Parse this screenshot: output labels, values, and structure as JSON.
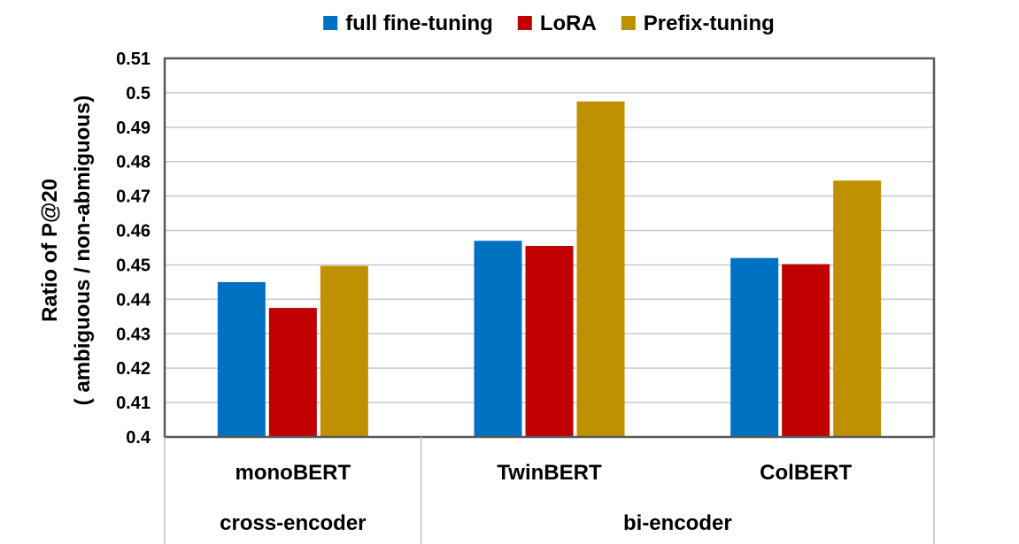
{
  "chart_data": {
    "type": "bar",
    "title": "",
    "xlabel": "",
    "ylabel_line1": "Ratio of P@20",
    "ylabel_line2": "( ambiguous  / non-abmiguous)",
    "ylim": [
      0.4,
      0.51
    ],
    "ytick_step": 0.01,
    "yticks": [
      "0.4",
      "0.41",
      "0.42",
      "0.43",
      "0.44",
      "0.45",
      "0.46",
      "0.47",
      "0.48",
      "0.49",
      "0.5",
      "0.51"
    ],
    "grid": true,
    "legend_position": "top-center",
    "categories": [
      "monoBERT",
      "TwinBERT",
      "ColBERT"
    ],
    "groups": [
      {
        "label": "cross-encoder",
        "members": [
          "monoBERT"
        ]
      },
      {
        "label": "bi-encoder",
        "members": [
          "TwinBERT",
          "ColBERT"
        ]
      }
    ],
    "series": [
      {
        "name": "full fine-tuning",
        "color": "#0070C0",
        "values": [
          0.445,
          0.457,
          0.452
        ]
      },
      {
        "name": "LoRA",
        "color": "#C00000",
        "values": [
          0.4375,
          0.4555,
          0.4502
        ]
      },
      {
        "name": "Prefix-tuning",
        "color": "#BF9000",
        "values": [
          0.4497,
          0.4975,
          0.4745
        ]
      }
    ]
  }
}
